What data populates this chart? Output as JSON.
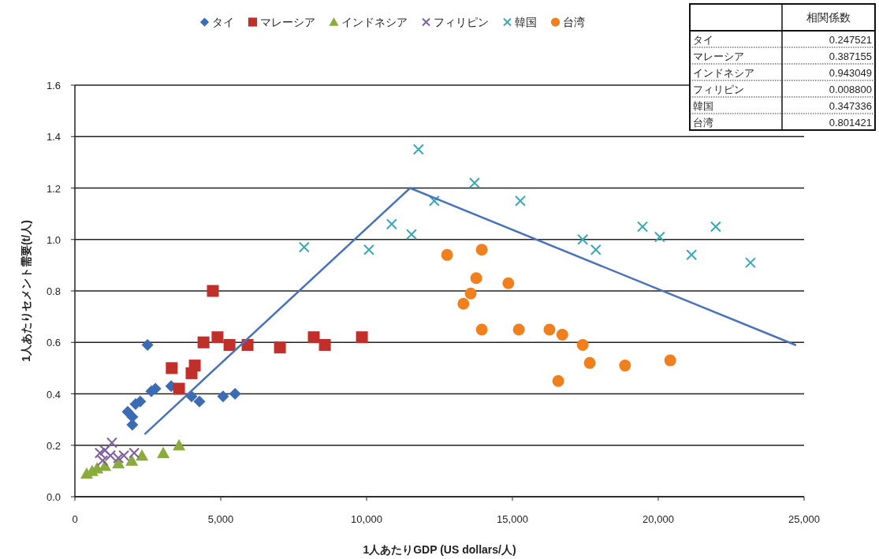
{
  "chart_data": {
    "type": "scatter",
    "xlabel": "1人あたりGDP (US dollars/人)",
    "ylabel": "1人あたりセメント需要(t/人)",
    "xlim": [
      0,
      25000
    ],
    "ylim": [
      0,
      1.6
    ],
    "xticks": [
      {
        "value": 0,
        "label": "0"
      },
      {
        "value": 5000,
        "label": "5,000"
      },
      {
        "value": 10000,
        "label": "10,000"
      },
      {
        "value": 15000,
        "label": "15,000"
      },
      {
        "value": 20000,
        "label": "20,000"
      },
      {
        "value": 25000,
        "label": "25,000"
      }
    ],
    "yticks": [
      {
        "value": 0,
        "label": "0.0"
      },
      {
        "value": 0.2,
        "label": "0.2"
      },
      {
        "value": 0.4,
        "label": "0.4"
      },
      {
        "value": 0.6,
        "label": "0.6"
      },
      {
        "value": 0.8,
        "label": "0.8"
      },
      {
        "value": 1.0,
        "label": "1.0"
      },
      {
        "value": 1.2,
        "label": "1.2"
      },
      {
        "value": 1.4,
        "label": "1.4"
      },
      {
        "value": 1.6,
        "label": "1.6"
      }
    ],
    "grid": "y",
    "legend": "top",
    "series": [
      {
        "name": "タイ",
        "color": "#3c6bb5",
        "marker": "diamond",
        "x": [
          2490,
          2760,
          2620,
          3300,
          2240,
          2080,
          1810,
          1970,
          1970,
          4000,
          4270,
          5080,
          5490
        ],
        "values": [
          0.59,
          0.42,
          0.41,
          0.43,
          0.37,
          0.36,
          0.33,
          0.31,
          0.28,
          0.39,
          0.37,
          0.39,
          0.4
        ]
      },
      {
        "name": "マレーシア",
        "color": "#c0302a",
        "marker": "square",
        "x": [
          4730,
          4410,
          4890,
          5300,
          5920,
          7030,
          8190,
          8570,
          3320,
          4110,
          4000,
          3570,
          9840
        ],
        "values": [
          0.8,
          0.6,
          0.62,
          0.59,
          0.59,
          0.58,
          0.62,
          0.59,
          0.5,
          0.51,
          0.48,
          0.42,
          0.62
        ]
      },
      {
        "name": "インドネシア",
        "color": "#8aac3c",
        "marker": "triangle",
        "x": [
          3570,
          3030,
          405,
          590,
          760,
          1030,
          1490,
          1950,
          2300
        ],
        "values": [
          0.2,
          0.17,
          0.09,
          0.1,
          0.11,
          0.12,
          0.13,
          0.14,
          0.16
        ]
      },
      {
        "name": "フィリピン",
        "color": "#7f5fa0",
        "marker": "cross",
        "x": [
          1270,
          1030,
          860,
          1220,
          1680,
          2030,
          1490,
          950
        ],
        "values": [
          0.21,
          0.18,
          0.17,
          0.16,
          0.16,
          0.17,
          0.15,
          0.14
        ]
      },
      {
        "name": "韓国",
        "color": "#3aa7b5",
        "marker": "cross",
        "x": [
          11780,
          12320,
          11540,
          13700,
          15270,
          17410,
          17860,
          19460,
          20050,
          21140,
          21970,
          23160,
          7860,
          10080,
          10860
        ],
        "values": [
          1.35,
          1.15,
          1.02,
          1.22,
          1.15,
          1.0,
          0.96,
          1.05,
          1.01,
          0.94,
          1.05,
          0.91,
          0.97,
          0.96,
          1.06
        ]
      },
      {
        "name": "台湾",
        "color": "#f07f1e",
        "marker": "circle",
        "x": [
          12760,
          13950,
          13760,
          14860,
          13570,
          13320,
          13950,
          15220,
          16270,
          16710,
          17410,
          17650,
          18860,
          20410,
          16570
        ],
        "values": [
          0.94,
          0.96,
          0.85,
          0.83,
          0.79,
          0.75,
          0.65,
          0.65,
          0.65,
          0.63,
          0.59,
          0.52,
          0.51,
          0.53,
          0.45
        ]
      },
      {
        "type": "line",
        "color": "#4a72b8",
        "x": [
          2410,
          11490,
          24700
        ],
        "values": [
          0.245,
          1.2,
          0.59
        ]
      }
    ],
    "annotations": [
      "相関係数",
      "タイ",
      "0.247521",
      "マレーシア",
      "0.387155",
      "インドネシア",
      "0.943049",
      "フィリピン",
      "0.008800",
      "韓国",
      "0.347336",
      "台湾",
      "0.801421"
    ]
  }
}
